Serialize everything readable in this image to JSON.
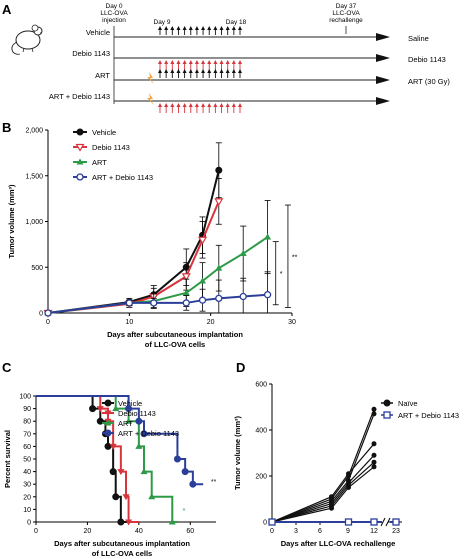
{
  "panel_a": {
    "letter": "A",
    "timeline_labels": [
      {
        "text": "Day 0",
        "id": "d0a"
      },
      {
        "text": "LLC-OVA",
        "id": "d0b"
      },
      {
        "text": "injection",
        "id": "d0c"
      },
      {
        "text": "Day 9",
        "id": "d9"
      },
      {
        "text": "Day 18",
        "id": "d18"
      },
      {
        "text": "Day 37",
        "id": "d37a"
      },
      {
        "text": "LLC-OVA",
        "id": "d37b"
      },
      {
        "text": "rechallenge",
        "id": "d37c"
      }
    ],
    "groups": [
      {
        "label": "Vehicle",
        "outcome": "Saline",
        "arrow_color": "#111111",
        "irradiated": false
      },
      {
        "label": "Debio 1143",
        "outcome": "Debio 1143",
        "arrow_color": "#d8343b",
        "irradiated": false
      },
      {
        "label": "ART",
        "outcome": "ART (30 Gy)",
        "arrow_color": "#111111",
        "irradiated": true
      },
      {
        "label": "ART + Debio 1143",
        "outcome": "",
        "arrow_color": "#d8343b",
        "irradiated": true
      }
    ],
    "colors": {
      "black_arrow": "#111111",
      "red_arrow": "#d8343b",
      "lightning": "#f2a23a"
    }
  },
  "chart_data": [
    {
      "panel": "B",
      "type": "line",
      "xlabel": "Days after subcutaneous implantation\nof LLC-OVA cells",
      "ylabel": "Tumor volume (mm³)",
      "xlim": [
        0,
        30
      ],
      "ylim": [
        0,
        2000
      ],
      "xticks": [
        "0",
        "10",
        "20",
        "30"
      ],
      "yticks": [
        "0",
        "500",
        "1,000",
        "1,500",
        "2,000"
      ],
      "annotations": [
        "*",
        "**"
      ],
      "series": [
        {
          "name": "Vehicle",
          "color": "#111111",
          "marker": "filled-circle",
          "x": [
            0,
            10,
            13,
            17,
            19,
            21
          ],
          "y": [
            0,
            120,
            200,
            500,
            850,
            1560
          ],
          "err": [
            0,
            40,
            100,
            200,
            200,
            300
          ]
        },
        {
          "name": "Debio 1143",
          "color": "#d8343b",
          "marker": "open-triangle-down",
          "x": [
            0,
            10,
            13,
            17,
            19,
            21
          ],
          "y": [
            0,
            100,
            180,
            400,
            800,
            1220
          ],
          "err": [
            0,
            40,
            90,
            150,
            200,
            250
          ]
        },
        {
          "name": "ART",
          "color": "#2e9a48",
          "marker": "filled-triangle-up",
          "x": [
            0,
            10,
            13,
            17,
            19,
            21,
            24,
            27
          ],
          "y": [
            0,
            110,
            130,
            220,
            350,
            490,
            650,
            830
          ],
          "err": [
            0,
            30,
            80,
            150,
            200,
            250,
            300,
            400
          ]
        },
        {
          "name": "ART + Debio 1143",
          "color": "#2b3f9a",
          "marker": "open-circle",
          "x": [
            0,
            10,
            13,
            17,
            19,
            21,
            24,
            27
          ],
          "y": [
            0,
            110,
            110,
            110,
            140,
            160,
            180,
            200
          ],
          "err": [
            0,
            30,
            50,
            80,
            120,
            200,
            200,
            250
          ]
        }
      ],
      "significance": [
        {
          "text": "*",
          "x": 28,
          "y_low": 90,
          "y_high": 780
        },
        {
          "text": "**",
          "x": 29.5,
          "y_low": 60,
          "y_high": 1180
        }
      ]
    },
    {
      "panel": "C",
      "type": "line",
      "xlabel": "Days after subcutaneous implantation\nof LLC-OVA cells",
      "ylabel": "Percent survival",
      "xlim": [
        0,
        70
      ],
      "ylim": [
        0,
        100
      ],
      "xticks": [
        "0",
        "20",
        "40",
        "60"
      ],
      "yticks": [
        "0",
        "10",
        "20",
        "30",
        "40",
        "50",
        "60",
        "70",
        "80",
        "90",
        "100"
      ],
      "annotations": [
        "*",
        "**"
      ],
      "series": [
        {
          "name": "Vehicle",
          "color": "#111111",
          "marker": "filled-circle",
          "steps": [
            [
              0,
              100
            ],
            [
              22,
              100
            ],
            [
              22,
              90
            ],
            [
              25,
              90
            ],
            [
              25,
              80
            ],
            [
              27,
              80
            ],
            [
              27,
              70
            ],
            [
              28,
              70
            ],
            [
              28,
              60
            ],
            [
              30,
              60
            ],
            [
              30,
              40
            ],
            [
              31,
              40
            ],
            [
              31,
              20
            ],
            [
              33,
              20
            ],
            [
              33,
              0
            ],
            [
              38,
              0
            ]
          ]
        },
        {
          "name": "Debio 1143",
          "color": "#d8343b",
          "marker": "filled-triangle-down",
          "steps": [
            [
              0,
              100
            ],
            [
              25,
              100
            ],
            [
              25,
              90
            ],
            [
              28,
              90
            ],
            [
              28,
              80
            ],
            [
              30,
              80
            ],
            [
              30,
              60
            ],
            [
              33,
              60
            ],
            [
              33,
              40
            ],
            [
              35,
              40
            ],
            [
              35,
              20
            ],
            [
              36,
              20
            ],
            [
              36,
              0
            ],
            [
              40,
              0
            ]
          ]
        },
        {
          "name": "ART",
          "color": "#2e9a48",
          "marker": "filled-triangle-up",
          "steps": [
            [
              0,
              100
            ],
            [
              31,
              100
            ],
            [
              31,
              90
            ],
            [
              36,
              90
            ],
            [
              36,
              80
            ],
            [
              40,
              80
            ],
            [
              40,
              60
            ],
            [
              42,
              60
            ],
            [
              42,
              40
            ],
            [
              45,
              40
            ],
            [
              45,
              20
            ],
            [
              53,
              20
            ],
            [
              53,
              0
            ],
            [
              55,
              0
            ]
          ]
        },
        {
          "name": "ART + Debio 1143",
          "color": "#2b3f9a",
          "marker": "filled-circle",
          "steps": [
            [
              0,
              100
            ],
            [
              36,
              100
            ],
            [
              36,
              90
            ],
            [
              40,
              90
            ],
            [
              40,
              80
            ],
            [
              42,
              80
            ],
            [
              42,
              70
            ],
            [
              55,
              70
            ],
            [
              55,
              50
            ],
            [
              58,
              50
            ],
            [
              58,
              40
            ],
            [
              61,
              40
            ],
            [
              61,
              30
            ],
            [
              65,
              30
            ]
          ]
        }
      ],
      "significance": [
        {
          "text": "*",
          "x": 57,
          "y": 7,
          "color": "#2e9a48"
        },
        {
          "text": "**",
          "x": 68,
          "y": 30,
          "color": "#111111"
        }
      ]
    },
    {
      "panel": "D",
      "type": "line",
      "xlabel": "Days after LLC-OVA rechallenge",
      "ylabel": "Tumor volume (mm³)",
      "ylim": [
        0,
        600
      ],
      "xticks": [
        "0",
        "3",
        "6",
        "9",
        "12",
        "23"
      ],
      "yticks": [
        "0",
        "200",
        "400",
        "600"
      ],
      "series": [
        {
          "name": "Naïve",
          "color": "#111111",
          "marker": "filled-circle",
          "x": [
            0,
            7,
            9,
            12
          ],
          "lines": [
            [
              0,
              100,
              200,
              490
            ],
            [
              0,
              90,
              180,
              470
            ],
            [
              0,
              110,
              210,
              340
            ],
            [
              0,
              80,
              170,
              290
            ],
            [
              0,
              70,
              160,
              260
            ],
            [
              0,
              60,
              150,
              240
            ]
          ]
        },
        {
          "name": "ART + Debio 1143",
          "color": "#2b3f9a",
          "marker": "open-square",
          "x": [
            0,
            9,
            12,
            23
          ],
          "y": [
            0,
            0,
            0,
            0
          ]
        }
      ]
    }
  ],
  "panel_letters": {
    "b": "B",
    "c": "C",
    "d": "D"
  }
}
